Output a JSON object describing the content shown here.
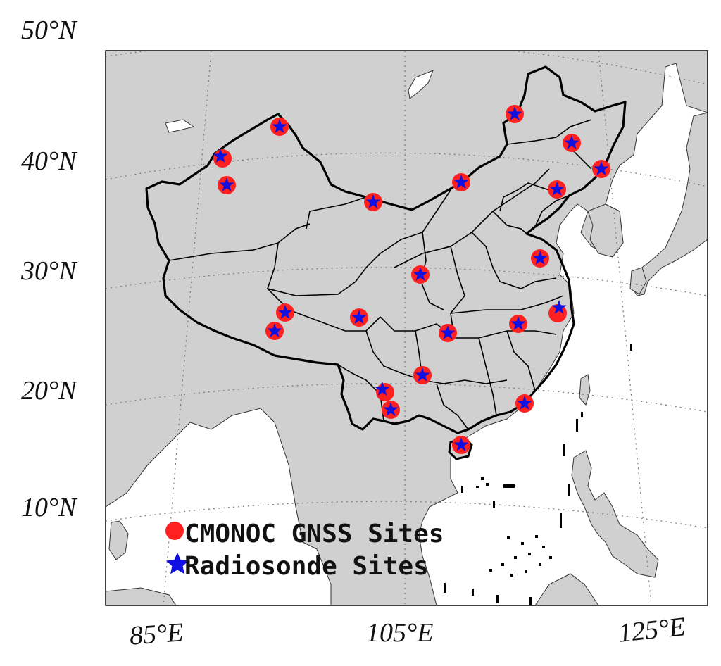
{
  "map": {
    "lat_labels": [
      "50°N",
      "40°N",
      "30°N",
      "20°N",
      "10°N"
    ],
    "lon_labels": [
      "85°E",
      "105°E",
      "125°E"
    ],
    "colors": {
      "land": "#d0d0d0",
      "sea": "#ffffff",
      "border": "#000000",
      "gnss": "#ff2020",
      "radiosonde": "#1010e0",
      "graticule": "#777777"
    }
  },
  "legend": {
    "gnss_label": "CMONOC GNSS Sites",
    "radiosonde_label": "Radiosonde Sites"
  }
}
